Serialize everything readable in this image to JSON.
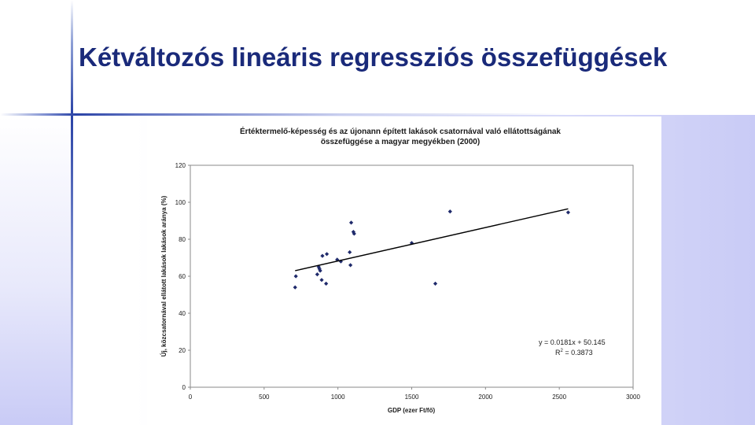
{
  "slide": {
    "title": "Kétváltozós lineáris regressziós összefüggések"
  },
  "colors": {
    "title": "#1a2a7a",
    "marker": "#1f2a6b",
    "trendline": "#000000",
    "accent_line": "#2a43a6"
  },
  "chart_data": {
    "type": "scatter",
    "title_lines": [
      "Értéktermelő-képesség és az újonann épített lakások csatornával való ellátottságának",
      "összefüggése a magyar megyékben (2000)"
    ],
    "xlabel": "GDP (ezer Ft/fő)",
    "ylabel": "Új, közcsatornával ellátott lakások lakások aránya (%)",
    "xlim": [
      0,
      3000
    ],
    "ylim": [
      0,
      120
    ],
    "xticks": [
      "0",
      "500",
      "1000",
      "1500",
      "2000",
      "2500",
      "3000"
    ],
    "yticks": [
      "0",
      "20",
      "40",
      "60",
      "80",
      "100",
      "120"
    ],
    "grid": false,
    "legend": "none",
    "points": [
      {
        "x": 710,
        "y": 54
      },
      {
        "x": 715,
        "y": 60
      },
      {
        "x": 860,
        "y": 61
      },
      {
        "x": 870,
        "y": 65
      },
      {
        "x": 875,
        "y": 64
      },
      {
        "x": 880,
        "y": 63
      },
      {
        "x": 890,
        "y": 58
      },
      {
        "x": 895,
        "y": 71
      },
      {
        "x": 920,
        "y": 56
      },
      {
        "x": 925,
        "y": 72
      },
      {
        "x": 995,
        "y": 69
      },
      {
        "x": 1020,
        "y": 68
      },
      {
        "x": 1080,
        "y": 73
      },
      {
        "x": 1085,
        "y": 66
      },
      {
        "x": 1090,
        "y": 89
      },
      {
        "x": 1105,
        "y": 84
      },
      {
        "x": 1110,
        "y": 83
      },
      {
        "x": 1500,
        "y": 78
      },
      {
        "x": 1660,
        "y": 56
      },
      {
        "x": 1760,
        "y": 95
      },
      {
        "x": 2560,
        "y": 94.5
      }
    ],
    "trendline": {
      "slope": 0.0181,
      "intercept": 50.145,
      "x_start": 710,
      "x_end": 2560
    },
    "equation": "y = 0.0181x + 50.145",
    "r2_prefix": "R",
    "r2_sup": "2",
    "r2_value": " = 0.3873"
  }
}
